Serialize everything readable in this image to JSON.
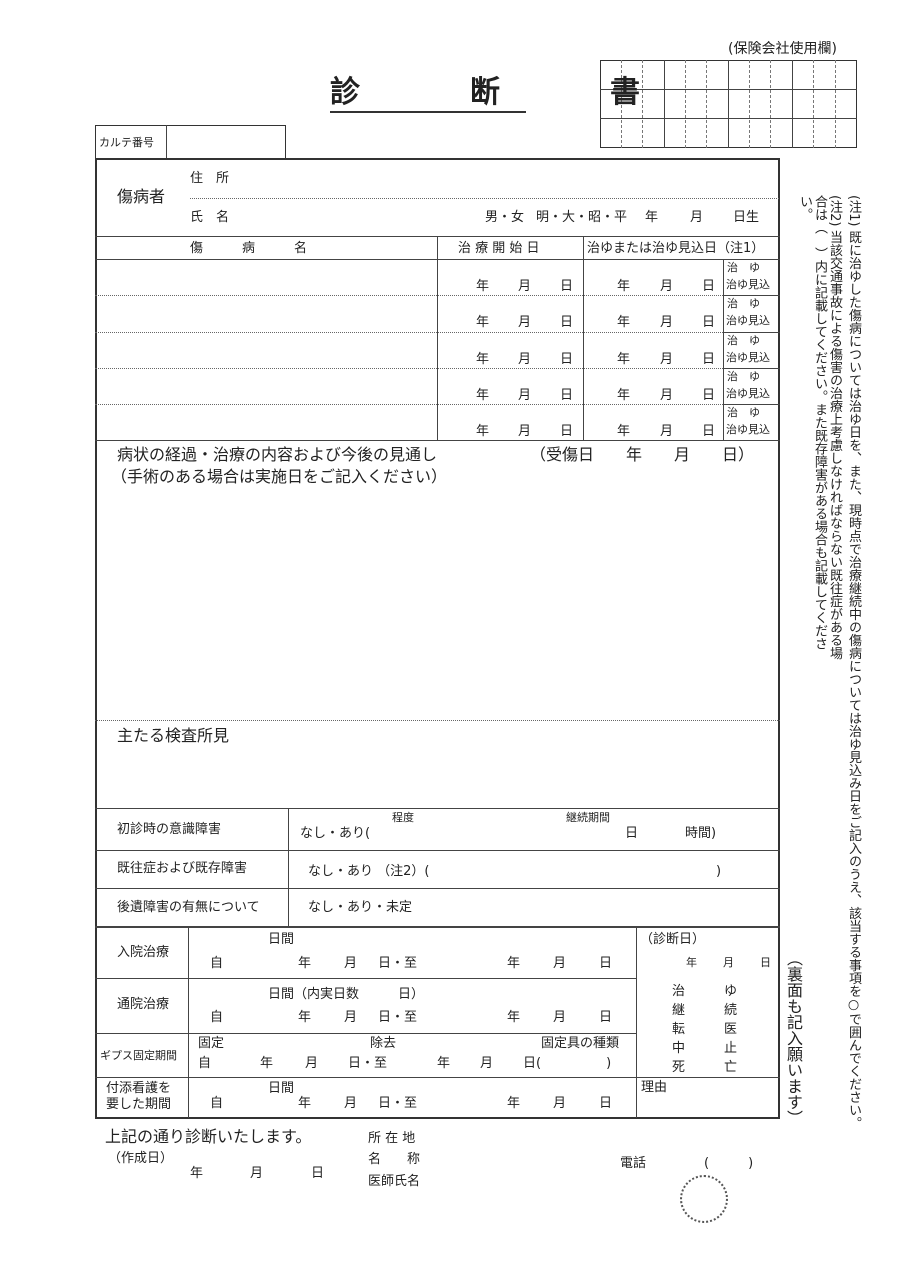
{
  "insurer_note": "(保険会社使用欄)",
  "title": "診　断　書",
  "chart_no_label": "カルテ番号",
  "patient": {
    "label": "傷病者",
    "address": "住　所",
    "name": "氏　名",
    "sex": "男・女",
    "era": "明・大・昭・平",
    "year": "年",
    "month": "月",
    "birth": "日生"
  },
  "injury_header": {
    "name": "傷　　　病　　　名",
    "start": "治 療 開 始 日",
    "cure": "治ゆまたは治ゆ見込日（注1）"
  },
  "date": {
    "y": "年",
    "m": "月",
    "d": "日"
  },
  "cure_opts": {
    "cured": "治　ゆ",
    "expected": "治ゆ見込"
  },
  "progress": {
    "label": "病状の経過・治療の内容および今後の見通し",
    "sub": "（手術のある場合は実施日をご記入ください）",
    "injury_date": "（受傷日　　年　　月　　日）"
  },
  "exam": "主たる検査所見",
  "consciousness": {
    "label": "初診時の意識障害",
    "value": "なし・あり(",
    "degree": "程度",
    "duration": "継続期間",
    "day": "日",
    "hours": "時間)"
  },
  "prior": {
    "label": "既往症および既存障害",
    "value": "なし・あり （注2）(",
    ")": ")"
  },
  "sequelae": {
    "label": "後遺障害の有無について",
    "value": "なし・あり・未定"
  },
  "inpatient": {
    "label": "入院治療",
    "days": "日間"
  },
  "outpatient": {
    "label": "通院治療",
    "days": "日間（内実日数　　　日）"
  },
  "cast": {
    "label": "ギプス固定期間",
    "fix": "固定",
    "remove": "除去",
    "type": "固定具の種類",
    "close": "日(　　　　　)"
  },
  "nursing": {
    "label1": "付添看護を",
    "label2": "要した期間",
    "days": "日間"
  },
  "period": {
    "from": "自",
    "to": "日・至"
  },
  "diag": {
    "label": "（診断日）",
    "outcomes": [
      "治　　　ゆ",
      "継　　　続",
      "転　　　医",
      "中　　　止",
      "死　　　亡"
    ],
    "reason": "理由"
  },
  "back_note": "（裏面も記入願います）",
  "note1": "(注1) 既に治ゆした傷病については治ゆ日を、また、現時点で治療継続中の傷病については治ゆ見込み日をご記入のうえ、該当する事項を○で囲んでください。",
  "note2": "(注2) 当該交通事故による傷害の治療上考慮しなければならない既往症がある場合は（　）内に記載してください。また既存障害がある場合も記載してください。",
  "footer": {
    "statement": "上記の通り診断いたします。",
    "created": "（作成日）",
    "address": "所 在 地",
    "org": "名　　称",
    "doctor": "医師氏名",
    "phone": "電話",
    "phone_paren": "(　　　)",
    "seal": "印"
  }
}
